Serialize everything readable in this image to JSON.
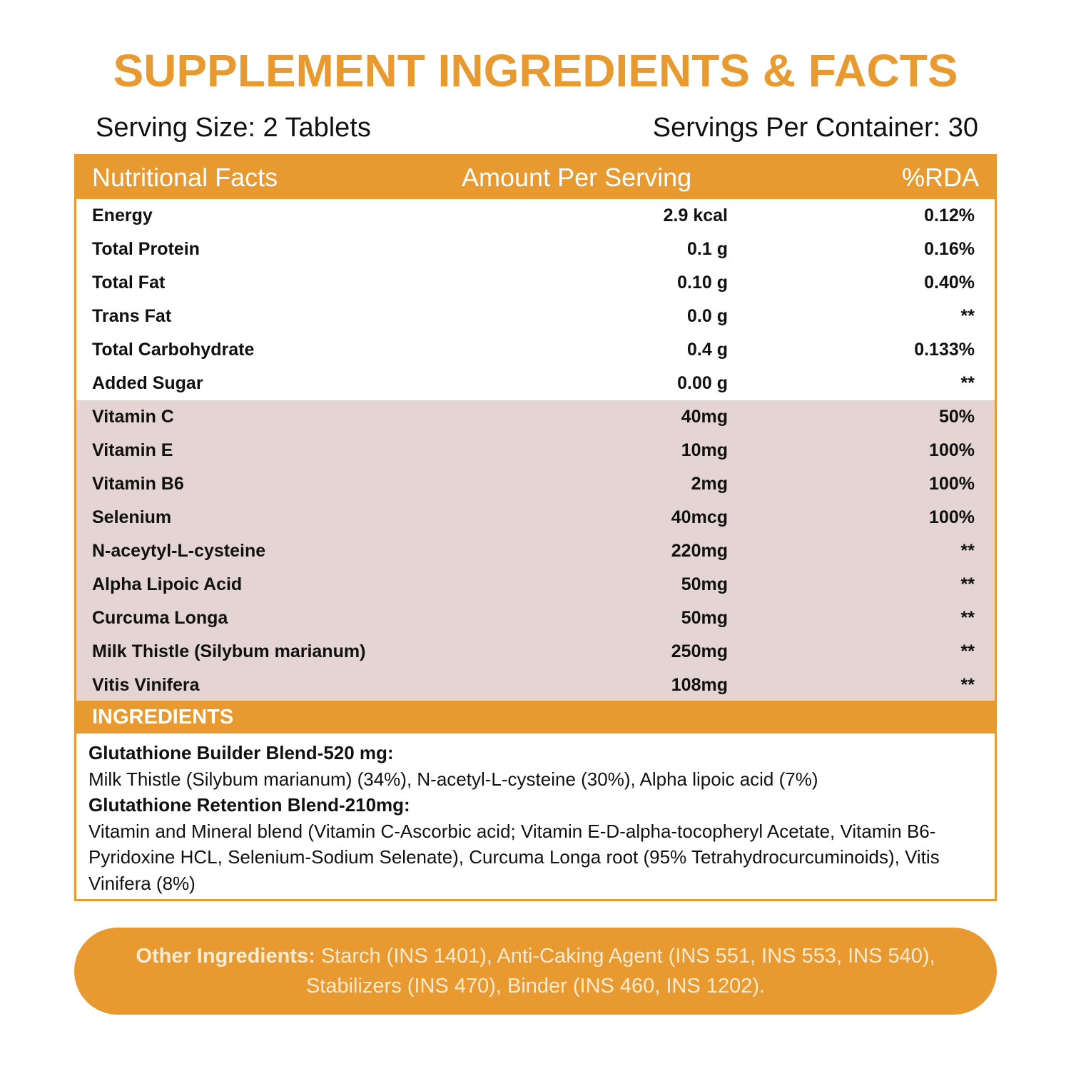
{
  "title": "SUPPLEMENT INGREDIENTS & FACTS",
  "serving_size": "Serving Size: 2 Tablets",
  "servings_per_container": "Servings Per Container: 30",
  "table": {
    "header": [
      "Nutritional Facts",
      "Amount Per Serving",
      "%RDA"
    ],
    "rows": [
      [
        "Energy",
        "2.9 kcal",
        "0.12%"
      ],
      [
        "Total Protein",
        "0.1 g",
        "0.16%"
      ],
      [
        "Total Fat",
        "0.10 g",
        "0.40%"
      ],
      [
        "Trans Fat",
        "0.0 g",
        "**"
      ],
      [
        "Total Carbohydrate",
        "0.4 g",
        "0.133%"
      ],
      [
        "Added Sugar",
        "0.00 g",
        "**"
      ]
    ],
    "highlighted_rows": [
      [
        "Vitamin C",
        "40mg",
        "50%"
      ],
      [
        "Vitamin E",
        "10mg",
        "100%"
      ],
      [
        "Vitamin B6",
        "2mg",
        "100%"
      ],
      [
        "Selenium",
        "40mcg",
        "100%"
      ],
      [
        "N-aceytyl-L-cysteine",
        "220mg",
        "**"
      ],
      [
        "Alpha Lipoic Acid",
        "50mg",
        "**"
      ],
      [
        "Curcuma Longa",
        "50mg",
        "**"
      ],
      [
        "Milk Thistle (Silybum marianum)",
        "250mg",
        "**"
      ],
      [
        "Vitis Vinifera",
        "108mg",
        "**"
      ]
    ]
  },
  "ingredients": {
    "heading": "INGREDIENTS",
    "blends": [
      {
        "name": "Glutathione Builder Blend-520 mg:",
        "text": "Milk Thistle (Silybum marianum) (34%), N-acetyl-L-cysteine (30%), Alpha lipoic acid (7%)"
      },
      {
        "name": "Glutathione Retention Blend-210mg:",
        "text": "Vitamin and Mineral blend (Vitamin C-Ascorbic acid; Vitamin E-D-alpha-tocopheryl Acetate, Vitamin B6-Pyridoxine HCL, Selenium-Sodium Selenate), Curcuma Longa root (95% Tetrahydrocurcuminoids), Vitis Vinifera (8%)"
      }
    ]
  },
  "other_ingredients": {
    "label": "Other Ingredients:",
    "text": "Starch (INS 1401), Anti-Caking Agent (INS 551, INS 553, INS 540), Stabilizers (INS 470), Binder (INS 460, INS 1202)."
  }
}
